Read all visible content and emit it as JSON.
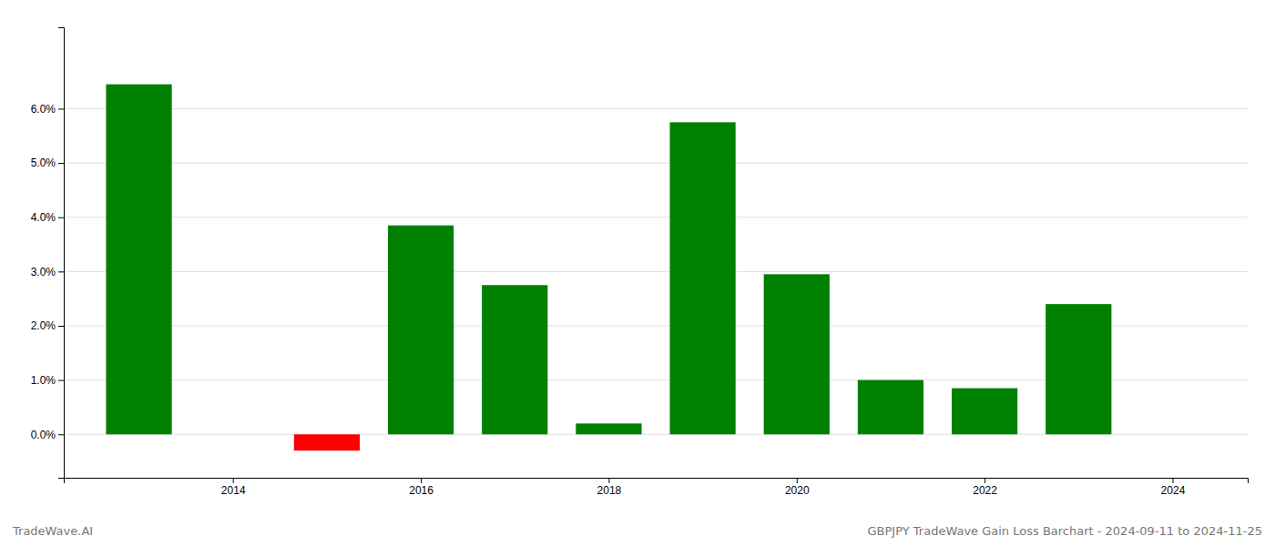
{
  "chart_data": {
    "type": "bar",
    "x": [
      2013,
      2015,
      2016,
      2017,
      2018,
      2019,
      2020,
      2021,
      2022,
      2023
    ],
    "values": [
      0.0645,
      -0.003,
      0.0385,
      0.0275,
      0.002,
      0.0575,
      0.0295,
      0.01,
      0.0085,
      0.024
    ],
    "colors": [
      "#008000",
      "#ff0000",
      "#008000",
      "#008000",
      "#008000",
      "#008000",
      "#008000",
      "#008000",
      "#008000",
      "#008000"
    ],
    "xlim": [
      2012.2,
      2024.8
    ],
    "xticks": [
      2014,
      2016,
      2018,
      2020,
      2022,
      2024
    ],
    "ylim": [
      -0.008,
      0.075
    ],
    "yticks": [
      {
        "value": 0.0,
        "label": "0.0%"
      },
      {
        "value": 0.01,
        "label": "1.0%"
      },
      {
        "value": 0.02,
        "label": "2.0%"
      },
      {
        "value": 0.03,
        "label": "3.0%"
      },
      {
        "value": 0.04,
        "label": "4.0%"
      },
      {
        "value": 0.05,
        "label": "5.0%"
      },
      {
        "value": 0.06,
        "label": "6.0%"
      }
    ],
    "grid": true,
    "annotations": [
      "TradeWave.AI",
      "GBPJPY TradeWave Gain Loss Barchart - 2024-09-11 to 2024-11-25"
    ]
  }
}
